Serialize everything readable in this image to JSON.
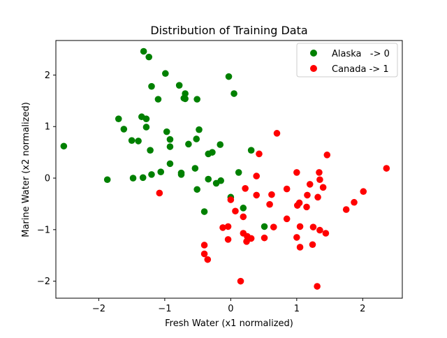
{
  "chart_data": {
    "type": "scatter",
    "title": "Distribution of Training Data",
    "xlabel": "Fresh Water (x1 normalized)",
    "ylabel": "Marine Water (x2 normalized)",
    "xlim": [
      -2.65,
      2.6
    ],
    "ylim": [
      -2.33,
      2.67
    ],
    "xticks": [
      -2,
      -1,
      0,
      1,
      2
    ],
    "yticks": [
      -2,
      -1,
      0,
      1,
      2
    ],
    "grid": false,
    "legend_position": "top-right",
    "series": [
      {
        "name": "Alaska   -> 0",
        "color": "#008000",
        "points": [
          [
            -2.53,
            0.62
          ],
          [
            -1.87,
            -0.03
          ],
          [
            -1.7,
            1.15
          ],
          [
            -1.62,
            0.95
          ],
          [
            -1.5,
            0.73
          ],
          [
            -1.48,
            0.0
          ],
          [
            -1.4,
            0.72
          ],
          [
            -1.35,
            1.19
          ],
          [
            -1.33,
            0.01
          ],
          [
            -1.28,
            1.15
          ],
          [
            -1.28,
            0.99
          ],
          [
            -1.22,
            0.54
          ],
          [
            -1.2,
            0.07
          ],
          [
            -1.2,
            1.78
          ],
          [
            -1.1,
            1.53
          ],
          [
            -1.06,
            0.12
          ],
          [
            -0.99,
            2.03
          ],
          [
            -0.97,
            0.9
          ],
          [
            -0.92,
            0.75
          ],
          [
            -0.92,
            0.61
          ],
          [
            -0.92,
            0.28
          ],
          [
            -0.78,
            1.8
          ],
          [
            -0.75,
            0.07
          ],
          [
            -0.75,
            0.1
          ],
          [
            -0.71,
            1.55
          ],
          [
            -0.69,
            1.64
          ],
          [
            -0.69,
            1.54
          ],
          [
            -0.64,
            0.66
          ],
          [
            -0.54,
            0.19
          ],
          [
            -0.52,
            0.76
          ],
          [
            -0.51,
            1.53
          ],
          [
            -0.51,
            -0.22
          ],
          [
            -0.48,
            0.94
          ],
          [
            -0.4,
            -0.65
          ],
          [
            -0.34,
            0.47
          ],
          [
            -0.34,
            -0.02
          ],
          [
            -0.28,
            0.5
          ],
          [
            -0.22,
            -0.1
          ],
          [
            -0.16,
            0.65
          ],
          [
            -0.15,
            -0.05
          ],
          [
            -0.03,
            1.97
          ],
          [
            0.0,
            -0.37
          ],
          [
            0.05,
            1.64
          ],
          [
            0.12,
            0.11
          ],
          [
            0.19,
            -0.58
          ],
          [
            0.31,
            0.54
          ],
          [
            0.51,
            -0.94
          ],
          [
            -1.32,
            2.46
          ],
          [
            -1.24,
            2.35
          ]
        ]
      },
      {
        "name": "Canada -> 1",
        "color": "#ff0000",
        "points": [
          [
            -1.08,
            -0.29
          ],
          [
            -0.4,
            -1.3
          ],
          [
            -0.4,
            -1.47
          ],
          [
            -0.35,
            -1.58
          ],
          [
            -0.12,
            -0.96
          ],
          [
            -0.04,
            -0.94
          ],
          [
            -0.04,
            -1.19
          ],
          [
            0.0,
            -0.42
          ],
          [
            0.07,
            -0.64
          ],
          [
            0.15,
            -2.0
          ],
          [
            0.19,
            -0.75
          ],
          [
            0.19,
            -1.07
          ],
          [
            0.22,
            -0.2
          ],
          [
            0.24,
            -1.23
          ],
          [
            0.25,
            -1.13
          ],
          [
            0.31,
            -1.17
          ],
          [
            0.39,
            0.04
          ],
          [
            0.39,
            -0.33
          ],
          [
            0.43,
            0.47
          ],
          [
            0.51,
            -1.16
          ],
          [
            0.59,
            -0.51
          ],
          [
            0.62,
            -0.32
          ],
          [
            0.65,
            -0.95
          ],
          [
            0.7,
            0.87
          ],
          [
            0.85,
            -0.21
          ],
          [
            0.85,
            -0.79
          ],
          [
            1.0,
            0.11
          ],
          [
            1.0,
            -1.15
          ],
          [
            1.01,
            -0.53
          ],
          [
            1.04,
            -0.48
          ],
          [
            1.05,
            -1.34
          ],
          [
            1.05,
            -0.94
          ],
          [
            1.15,
            -0.56
          ],
          [
            1.16,
            -0.33
          ],
          [
            1.2,
            -0.12
          ],
          [
            1.24,
            -1.29
          ],
          [
            1.25,
            -0.95
          ],
          [
            1.31,
            -2.1
          ],
          [
            1.32,
            -0.37
          ],
          [
            1.34,
            0.11
          ],
          [
            1.35,
            -0.03
          ],
          [
            1.35,
            -1.01
          ],
          [
            1.4,
            -0.18
          ],
          [
            1.44,
            -1.07
          ],
          [
            1.46,
            0.45
          ],
          [
            1.75,
            -0.61
          ],
          [
            1.87,
            -0.47
          ],
          [
            2.01,
            -0.26
          ],
          [
            2.36,
            0.19
          ]
        ]
      }
    ]
  }
}
